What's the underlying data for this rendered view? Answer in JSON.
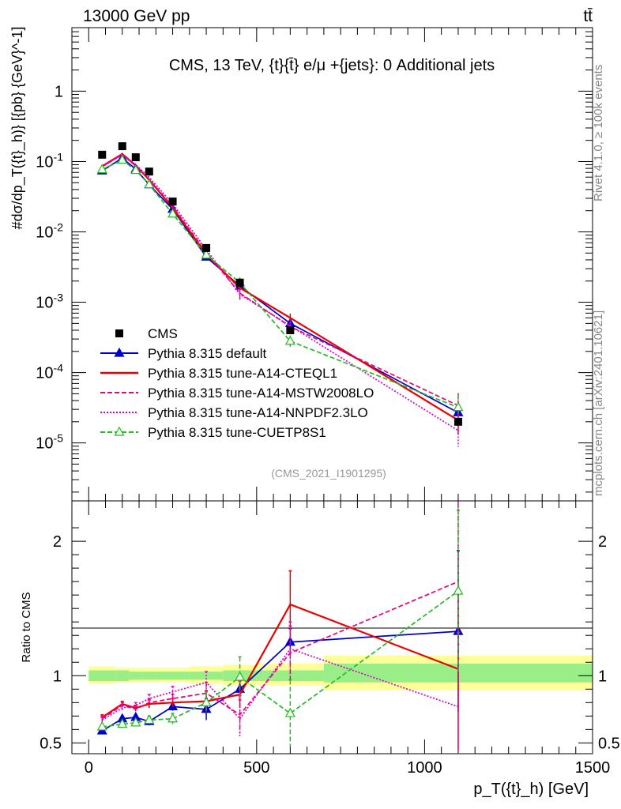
{
  "header": {
    "left": "13000 GeV pp",
    "right": "tt̄"
  },
  "side_labels": {
    "rivet": "Rivet 4.1.0, ≥ 100k events",
    "mcplots": "mcplots.cern.ch [arXiv:2401.10621]"
  },
  "chart_data": [
    {
      "type": "line",
      "title": "CMS, 13 TeV, {t}{t̄} e/μ +{jets}: 0 Additional jets",
      "watermark": "(CMS_2021_I1901295)",
      "ylabel": "#dσ/dp_T({t}_h)} [{pb} {GeV}^-1]",
      "yscale": "log",
      "ylim": [
        1.5e-06,
        8
      ],
      "xlim": [
        -50,
        1500
      ],
      "y_tick_labels": [
        "1",
        "10^-1",
        "10^-2",
        "10^-3",
        "10^-4",
        "10^-5"
      ],
      "x": [
        40,
        100,
        140,
        180,
        250,
        350,
        450,
        600,
        1100
      ],
      "cms": {
        "label": "CMS",
        "values": [
          0.125,
          0.165,
          0.115,
          0.072,
          0.027,
          0.0059,
          0.0019,
          0.0004,
          2e-05
        ]
      },
      "series": [
        {
          "name": "Pythia 8.315 default",
          "color": "#0000cc",
          "style": "solid",
          "marker": "triangle-filled",
          "values": [
            0.074,
            0.112,
            0.078,
            0.047,
            0.021,
            0.0044,
            0.0017,
            0.0005,
            2.7e-05
          ],
          "err": [
            0,
            0,
            0,
            0,
            0,
            0,
            0,
            0,
            0.4
          ]
        },
        {
          "name": "Pythia 8.315 tune-A14-CTEQL1",
          "color": "#ee0000",
          "style": "solid",
          "marker": "none",
          "values": [
            0.086,
            0.128,
            0.088,
            0.055,
            0.022,
            0.0048,
            0.0016,
            0.0006,
            2.1e-05
          ],
          "err": [
            0,
            0,
            0,
            0,
            0,
            0,
            0,
            0.15,
            0.6
          ]
        },
        {
          "name": "Pythia 8.315 tune-A14-MSTW2008LO",
          "color": "#ee0077",
          "style": "dashed",
          "marker": "none",
          "values": [
            0.084,
            0.126,
            0.086,
            0.056,
            0.023,
            0.0051,
            0.00135,
            0.00045,
            3.4e-05
          ],
          "err": [
            0,
            0,
            0,
            0,
            0,
            0,
            0.2,
            0.15,
            0.5
          ]
        },
        {
          "name": "Pythia 8.315 tune-A14-NNPDF2.3LO",
          "color": "#dd00cc",
          "style": "dotted",
          "marker": "none",
          "values": [
            0.085,
            0.125,
            0.09,
            0.06,
            0.025,
            0.0056,
            0.0013,
            0.00046,
            1.5e-05
          ],
          "err": [
            0,
            0,
            0,
            0,
            0,
            0,
            0.2,
            0.15,
            0.7
          ]
        },
        {
          "name": "Pythia 8.315 tune-CUETP8S1",
          "color": "#22bb22",
          "style": "dashed",
          "marker": "triangle-open",
          "values": [
            0.077,
            0.105,
            0.075,
            0.047,
            0.018,
            0.0047,
            0.0019,
            0.00028,
            3.2e-05
          ],
          "err": [
            0,
            0,
            0,
            0,
            0,
            0,
            0,
            0.2,
            0.5
          ]
        }
      ]
    },
    {
      "type": "line",
      "ylabel": "Ratio to CMS",
      "xlabel": "p_T({t}_h) [GeV]",
      "xlim": [
        -50,
        1500
      ],
      "ylim": [
        0.42,
        2.3
      ],
      "y_ticks": [
        0.5,
        1,
        2
      ],
      "y_tick_labels": [
        "0.5",
        "1",
        "2"
      ],
      "x_ticks": [
        0,
        500,
        1000,
        1500
      ],
      "x_tick_labels": [
        "0",
        "500",
        "1000",
        "1500"
      ],
      "x": [
        40,
        100,
        140,
        180,
        250,
        350,
        450,
        600,
        1100
      ],
      "band": {
        "edges": [
          0,
          80,
          120,
          160,
          200,
          300,
          400,
          500,
          700,
          1500
        ],
        "inner": [
          [
            0.96,
            1.04
          ],
          [
            0.96,
            1.04
          ],
          [
            0.97,
            1.03
          ],
          [
            0.97,
            1.03
          ],
          [
            0.97,
            1.03
          ],
          [
            0.97,
            1.03
          ],
          [
            0.96,
            1.04
          ],
          [
            0.96,
            1.04
          ],
          [
            0.95,
            1.09
          ]
        ],
        "outer": [
          [
            0.94,
            1.07
          ],
          [
            0.95,
            1.06
          ],
          [
            0.95,
            1.06
          ],
          [
            0.95,
            1.06
          ],
          [
            0.95,
            1.06
          ],
          [
            0.94,
            1.07
          ],
          [
            0.93,
            1.08
          ],
          [
            0.93,
            1.09
          ],
          [
            0.89,
            1.15
          ]
        ]
      },
      "series": [
        {
          "name": "Pythia 8.315 default",
          "color": "#0000cc",
          "style": "solid",
          "marker": "triangle-filled",
          "values": [
            0.59,
            0.68,
            0.69,
            0.66,
            0.77,
            0.75,
            0.9,
            1.25,
            1.33
          ],
          "err": [
            0.015,
            0.02,
            0.02,
            0.03,
            0.03,
            0.08,
            0.08,
            0.1,
            0.6
          ]
        },
        {
          "name": "Pythia 8.315 tune-A14-CTEQL1",
          "color": "#ee0000",
          "style": "solid",
          "marker": "none",
          "values": [
            0.69,
            0.79,
            0.76,
            0.79,
            0.8,
            0.81,
            0.86,
            1.53,
            1.05
          ],
          "err": [
            0.02,
            0.02,
            0.02,
            0.03,
            0.03,
            0.08,
            0.1,
            0.25,
            0.6
          ]
        },
        {
          "name": "Pythia 8.315 tune-A14-MSTW2008LO",
          "color": "#ee0077",
          "style": "dashed",
          "marker": "none",
          "values": [
            0.68,
            0.78,
            0.75,
            0.8,
            0.83,
            0.87,
            0.71,
            1.17,
            1.7
          ],
          "err": [
            0.02,
            0.02,
            0.02,
            0.03,
            0.03,
            0.08,
            0.14,
            0.2,
            0.65
          ]
        },
        {
          "name": "Pythia 8.315 tune-A14-NNPDF2.3LO",
          "color": "#dd00cc",
          "style": "dotted",
          "marker": "none",
          "values": [
            0.67,
            0.76,
            0.78,
            0.83,
            0.88,
            0.95,
            0.68,
            1.2,
            0.77
          ],
          "err": [
            0.02,
            0.02,
            0.02,
            0.03,
            0.04,
            0.08,
            0.14,
            0.2,
            0.55
          ]
        },
        {
          "name": "Pythia 8.315 tune-CUETP8S1",
          "color": "#22bb22",
          "style": "dashed",
          "marker": "triangle-open",
          "values": [
            0.62,
            0.64,
            0.65,
            0.67,
            0.68,
            0.8,
            0.99,
            0.72,
            1.63
          ],
          "err": [
            0.02,
            0.02,
            0.02,
            0.03,
            0.04,
            0.08,
            0.15,
            0.25,
            0.6
          ]
        }
      ]
    }
  ]
}
